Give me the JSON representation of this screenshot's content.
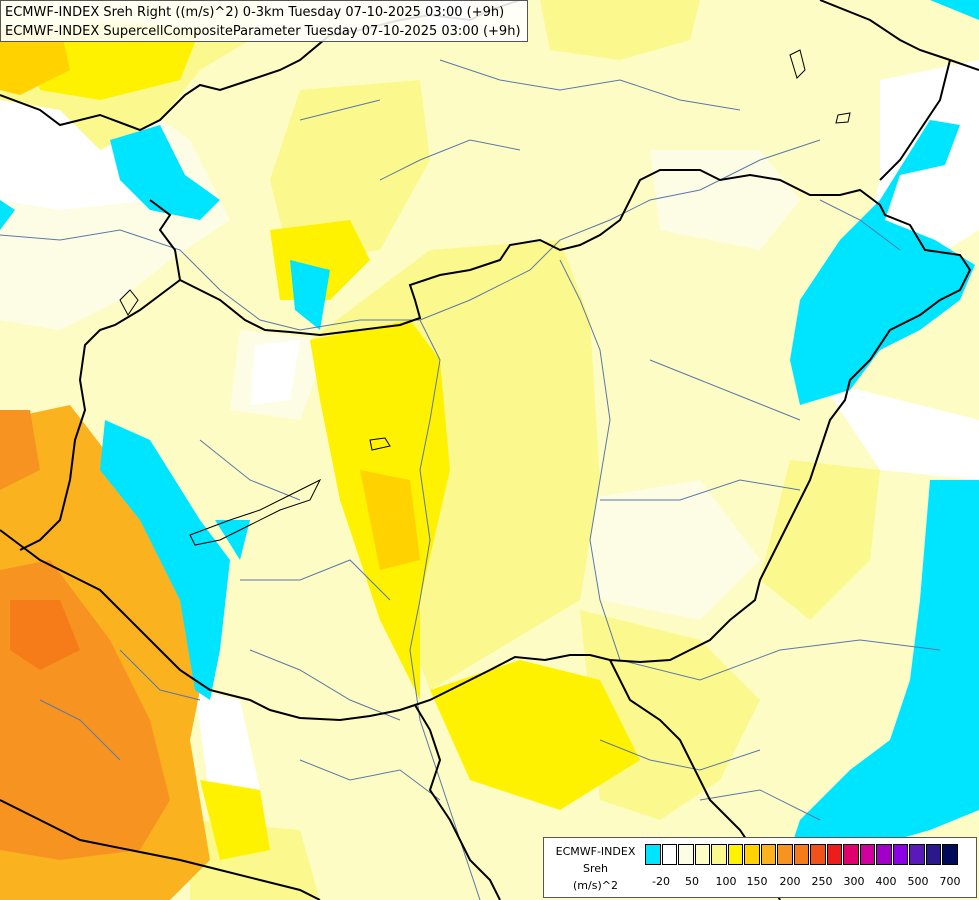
{
  "title": {
    "line1": "ECMWF-INDEX Sreh Right ((m/s)^2) 0-3km Tuesday 07-10-2025 03:00 (+9h)",
    "line2": "ECMWF-INDEX SupercellCompositeParameter Tuesday 07-10-2025 03:00 (+9h)"
  },
  "legend": {
    "line1": "ECMWF-INDEX",
    "line2": "Sreh",
    "line3": "(m/s)^2",
    "colors": [
      "#00e5ff",
      "#ffffff",
      "#fdfde6",
      "#fdfcc4",
      "#fbf88e",
      "#fff200",
      "#ffd200",
      "#fbb21f",
      "#f79421",
      "#f57c19",
      "#f2521a",
      "#ee1c1c",
      "#e1006e",
      "#d0009e",
      "#a000c8",
      "#8c00e6",
      "#5a19b9",
      "#29198c",
      "#000a5a"
    ],
    "ticks": [
      "-20",
      "50",
      "100",
      "150",
      "200",
      "250",
      "300",
      "400",
      "500",
      "700"
    ]
  },
  "colors": {
    "cyan": "#00e5ff",
    "pale": "#fdfde6",
    "light_yellow": "#fdfcc4",
    "yellow": "#fbf88e",
    "bright_yellow": "#fff200",
    "gold": "#ffd200",
    "orange": "#fbb21f",
    "dark_orange": "#f79421",
    "border": "#000000",
    "river": "#5a78a8"
  }
}
